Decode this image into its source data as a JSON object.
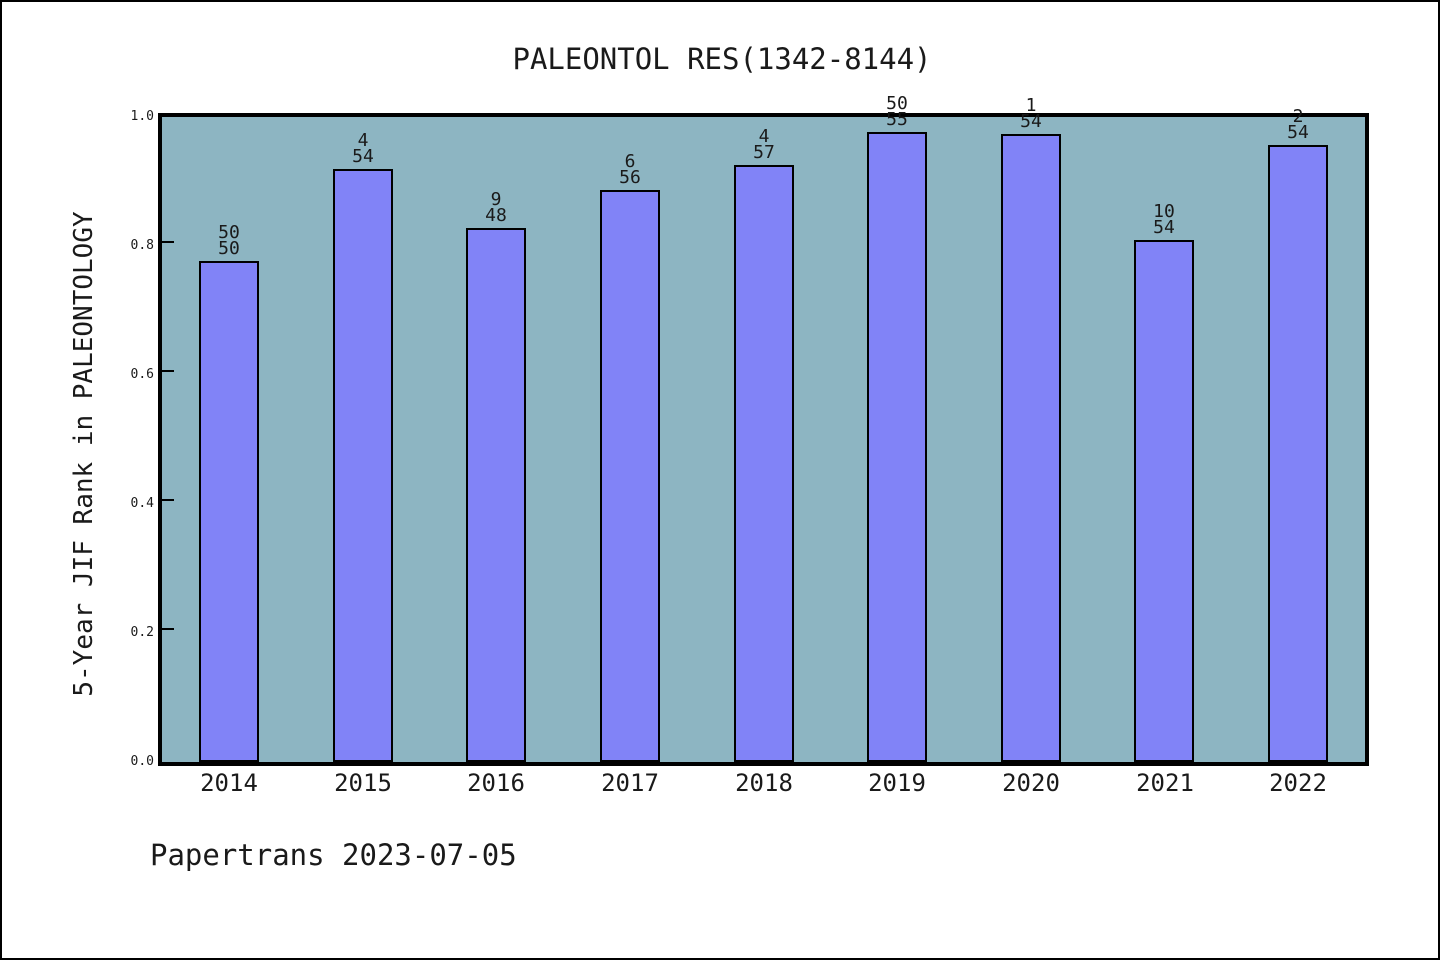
{
  "title": "PALEONTOL RES(1342-8144)",
  "caption": "Papertrans 2023-07-05",
  "chart_data": {
    "type": "bar",
    "title": "PALEONTOL RES(1342-8144)",
    "xlabel": "",
    "ylabel": "5-Year JIF Rank in PALEONTOLOGY",
    "categories": [
      "2014",
      "2015",
      "2016",
      "2017",
      "2018",
      "2019",
      "2020",
      "2021",
      "2022"
    ],
    "values": [
      0.776,
      0.919,
      0.828,
      0.887,
      0.926,
      0.976,
      0.973,
      0.809,
      0.957
    ],
    "bar_top_labels": [
      "50",
      "4",
      "9",
      "6",
      "4",
      "50",
      "1",
      "10",
      "2"
    ],
    "bar_bottom_labels": [
      "50",
      "54",
      "48",
      "56",
      "57",
      "55",
      "54",
      "54",
      "54"
    ],
    "ylim": [
      0.0,
      1.0
    ],
    "ytick_labels": [
      "0.0",
      "0.2",
      "0.4",
      "0.6",
      "0.8",
      "1.0"
    ],
    "grid": "off",
    "legend": "none",
    "colors": {
      "bar_fill": "#8183f7",
      "bar_edge": "#000000",
      "plot_background": "#8db5c2",
      "frame": "#000000",
      "text": "#1a1a1a",
      "figure_background": "#ffffff"
    }
  }
}
